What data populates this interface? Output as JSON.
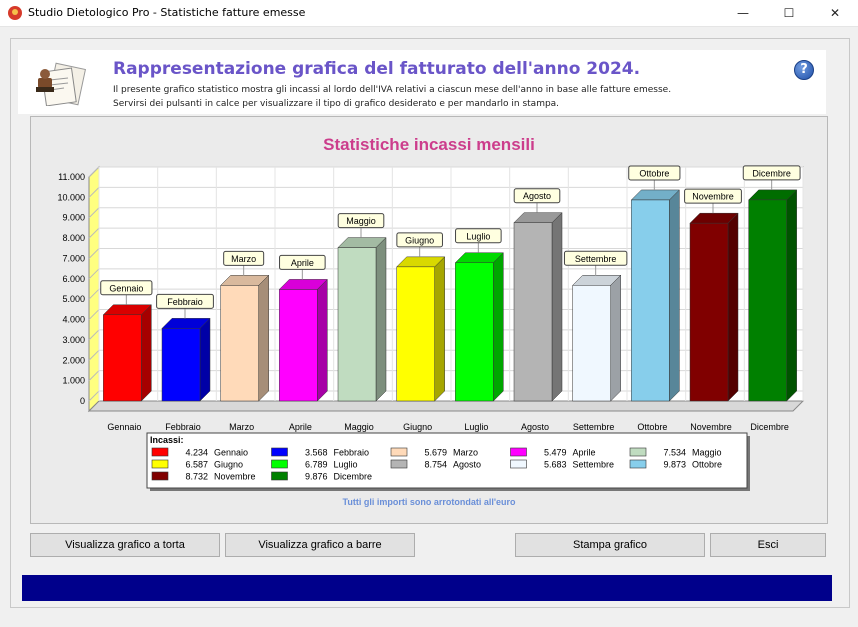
{
  "window": {
    "title": "Studio Dietologico Pro - Statistiche fatture emesse",
    "min": "—",
    "max": "☐",
    "close": "✕"
  },
  "header": {
    "title": "Rappresentazione grafica del fatturato dell'anno 2024.",
    "line1": "Il presente grafico statistico mostra gli incassi al lordo dell'IVA relativi a ciascun mese dell'anno in base alle fatture emesse.",
    "line2": "Servirsi dei pulsanti in calce per visualizzare il tipo di grafico desiderato e per mandarlo in stampa.",
    "help": "?"
  },
  "chart_data": {
    "type": "bar",
    "title": "Statistiche incassi mensili",
    "categories": [
      "Gennaio",
      "Febbraio",
      "Marzo",
      "Aprile",
      "Maggio",
      "Giugno",
      "Luglio",
      "Agosto",
      "Settembre",
      "Ottobre",
      "Novembre",
      "Dicembre"
    ],
    "values": [
      4234,
      3568,
      5679,
      5479,
      7534,
      6587,
      6789,
      8754,
      5683,
      9873,
      8732,
      9876
    ],
    "colors": [
      "#ff0000",
      "#0000ff",
      "#ffdab9",
      "#ff00ff",
      "#c0dcc0",
      "#ffff00",
      "#00ff00",
      "#b4b4b4",
      "#f0f8ff",
      "#87ceeb",
      "#800000",
      "#008000"
    ],
    "ylim": [
      0,
      11000
    ],
    "yticks": [
      "0",
      "1.000",
      "2.000",
      "3.000",
      "4.000",
      "5.000",
      "6.000",
      "7.000",
      "8.000",
      "9.000",
      "10.000",
      "11.000"
    ],
    "grid": true,
    "legend_title": "Incassi:",
    "legend_position": "bottom",
    "legend_items": [
      {
        "value": "4.234",
        "label": "Gennaio",
        "color": "#ff0000"
      },
      {
        "value": "3.568",
        "label": "Febbraio",
        "color": "#0000ff"
      },
      {
        "value": "5.679",
        "label": "Marzo",
        "color": "#ffdab9"
      },
      {
        "value": "5.479",
        "label": "Aprile",
        "color": "#ff00ff"
      },
      {
        "value": "7.534",
        "label": "Maggio",
        "color": "#c0dcc0"
      },
      {
        "value": "6.587",
        "label": "Giugno",
        "color": "#ffff00"
      },
      {
        "value": "6.789",
        "label": "Luglio",
        "color": "#00ff00"
      },
      {
        "value": "8.754",
        "label": "Agosto",
        "color": "#b4b4b4"
      },
      {
        "value": "5.683",
        "label": "Settembre",
        "color": "#f0f8ff"
      },
      {
        "value": "9.873",
        "label": "Ottobre",
        "color": "#87ceeb"
      },
      {
        "value": "8.732",
        "label": "Novembre",
        "color": "#800000"
      },
      {
        "value": "9.876",
        "label": "Dicembre",
        "color": "#008000"
      }
    ],
    "note": "Tutti gli importi sono arrotondati all'euro"
  },
  "buttons": {
    "pie": "Visualizza grafico a torta",
    "bar": "Visualizza grafico a barre",
    "print": "Stampa grafico",
    "exit": "Esci"
  }
}
